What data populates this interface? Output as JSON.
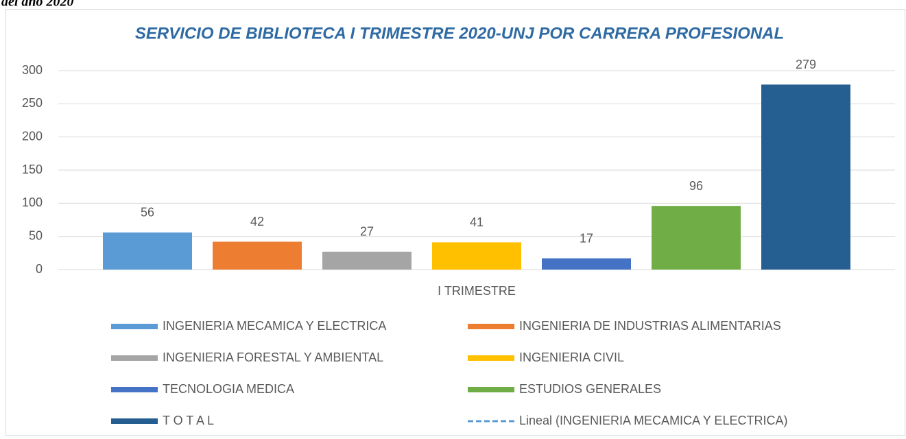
{
  "chart_data": {
    "type": "bar",
    "caption": "del año 2020",
    "title": "SERVICIO DE BIBLIOTECA I TRIMESTRE 2020-UNJ POR CARRERA PROFESIONAL",
    "categories": [
      "I TRIMESTRE"
    ],
    "series": [
      {
        "name": "INGENIERIA MECAMICA Y ELECTRICA",
        "color": "#5b9bd5",
        "values": [
          56
        ]
      },
      {
        "name": "INGENIERIA DE INDUSTRIAS ALIMENTARIAS",
        "color": "#ed7d31",
        "values": [
          42
        ]
      },
      {
        "name": "INGENIERIA FORESTAL Y AMBIENTAL",
        "color": "#a5a5a5",
        "values": [
          27
        ]
      },
      {
        "name": "INGENIERIA CIVIL",
        "color": "#ffc000",
        "values": [
          41
        ]
      },
      {
        "name": "TECNOLOGIA MEDICA",
        "color": "#4472c4",
        "values": [
          17
        ]
      },
      {
        "name": "ESTUDIOS GENERALES",
        "color": "#70ad47",
        "values": [
          96
        ]
      },
      {
        "name": "T O T A L",
        "color": "#255e91",
        "values": [
          279
        ]
      }
    ],
    "trendline": {
      "name": "Lineal (INGENIERIA MECAMICA Y ELECTRICA)",
      "color": "#5b9bd5"
    },
    "ylim": [
      0,
      300
    ],
    "yticks": [
      0,
      50,
      100,
      150,
      200,
      250,
      300
    ],
    "grid": true,
    "legend": "bottom"
  }
}
